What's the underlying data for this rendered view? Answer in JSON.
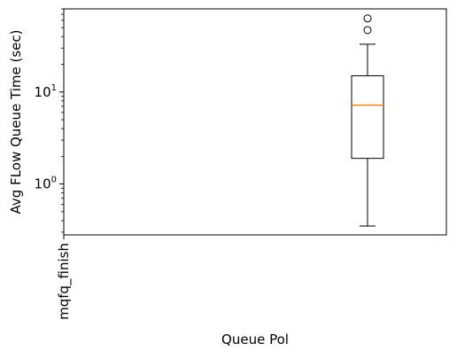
{
  "chart_data": {
    "type": "box",
    "title": "",
    "xlabel": "Queue Pol",
    "ylabel": "Avg FLow Queue Time (sec)",
    "yscale": "log",
    "ylim": [
      0.28,
      80
    ],
    "y_ticks": [
      {
        "value": 1,
        "base": "10",
        "exp": "0"
      },
      {
        "value": 10,
        "base": "10",
        "exp": "1"
      }
    ],
    "categories": [
      "mqfq_finish"
    ],
    "boxes": [
      {
        "category": "",
        "whisker_low": 0.35,
        "q1": 1.9,
        "median": 7.2,
        "q3": 15,
        "whisker_high": 33,
        "fliers": [
          47,
          63
        ]
      }
    ],
    "grid": false,
    "legend": "none",
    "colors": {
      "box": "#000000",
      "median": "#ff7f0e",
      "axes": "#000000"
    }
  }
}
